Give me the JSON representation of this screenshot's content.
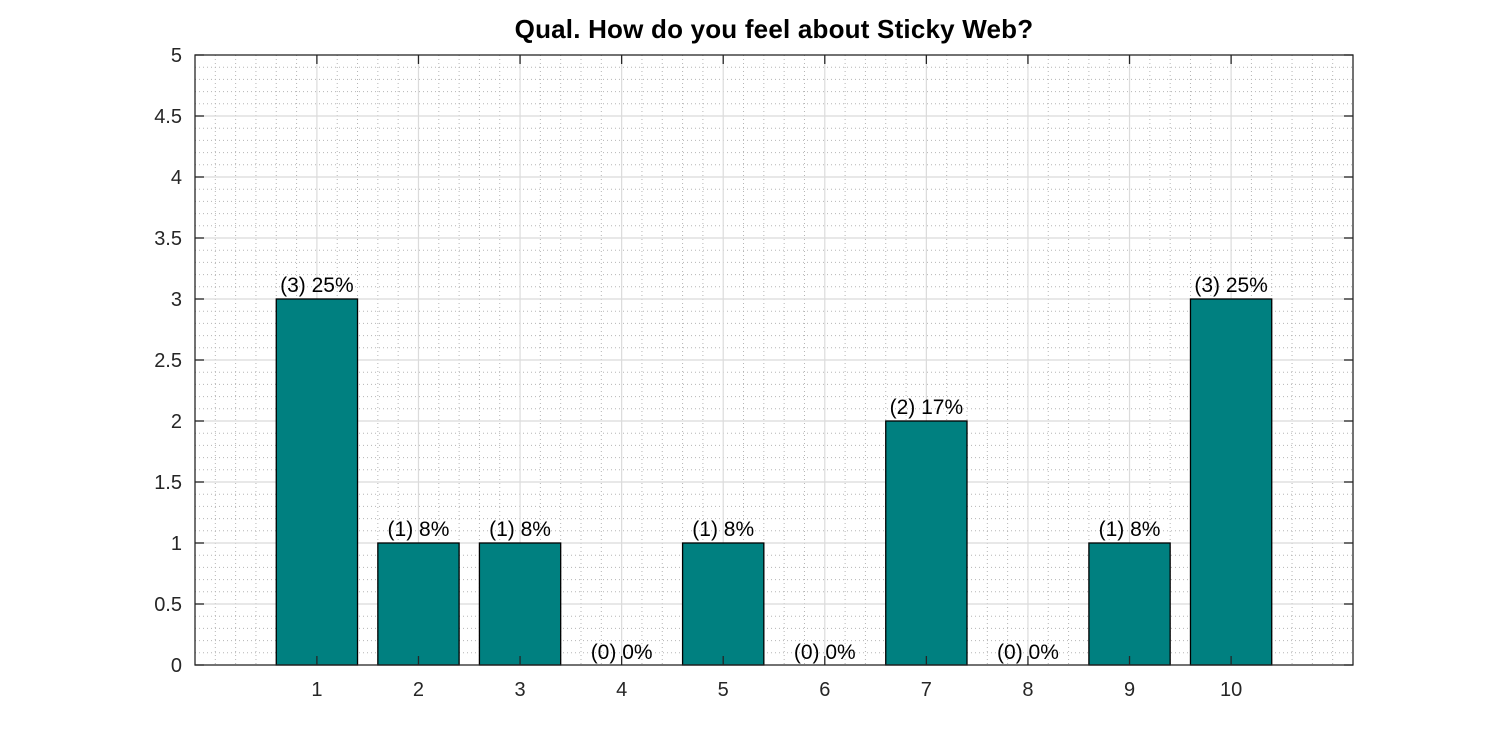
{
  "figure": {
    "background": "#ffffff"
  },
  "chart_data": {
    "type": "bar",
    "title": "Qual. How do you feel about Sticky Web?",
    "xlabel": "",
    "ylabel": "",
    "categories": [
      "1",
      "2",
      "3",
      "4",
      "5",
      "6",
      "7",
      "8",
      "9",
      "10"
    ],
    "values": [
      3,
      1,
      1,
      0,
      1,
      0,
      2,
      0,
      1,
      3
    ],
    "counts": [
      3,
      1,
      1,
      0,
      1,
      0,
      2,
      0,
      1,
      3
    ],
    "percents": [
      25,
      8,
      8,
      0,
      8,
      0,
      17,
      0,
      8,
      25
    ],
    "bar_labels": [
      "(3) 25%",
      "(1) 8%",
      "(1) 8%",
      "(0) 0%",
      "(1) 8%",
      "(0) 0%",
      "(2) 17%",
      "(0) 0%",
      "(1) 8%",
      "(3) 25%"
    ],
    "ylim": [
      0,
      5
    ],
    "ytick_step": 0.5,
    "ytick_labels": [
      "0",
      "0.5",
      "1",
      "1.5",
      "2",
      "2.5",
      "3",
      "3.5",
      "4",
      "4.5",
      "5"
    ],
    "xlim": [
      -0.2,
      11.2
    ],
    "bar_width_ratio": 0.8,
    "grid": "on",
    "minor_grid": "on",
    "legend": "none",
    "colors": {
      "bar_fill": "#008080",
      "bar_edge": "#000000",
      "axis": "#262626",
      "tick_label": "#262626",
      "major_grid": "#dbdbdb",
      "minor_grid": "#b5b5b5",
      "bar_label_text": "#000000",
      "title_text": "#000000"
    }
  }
}
